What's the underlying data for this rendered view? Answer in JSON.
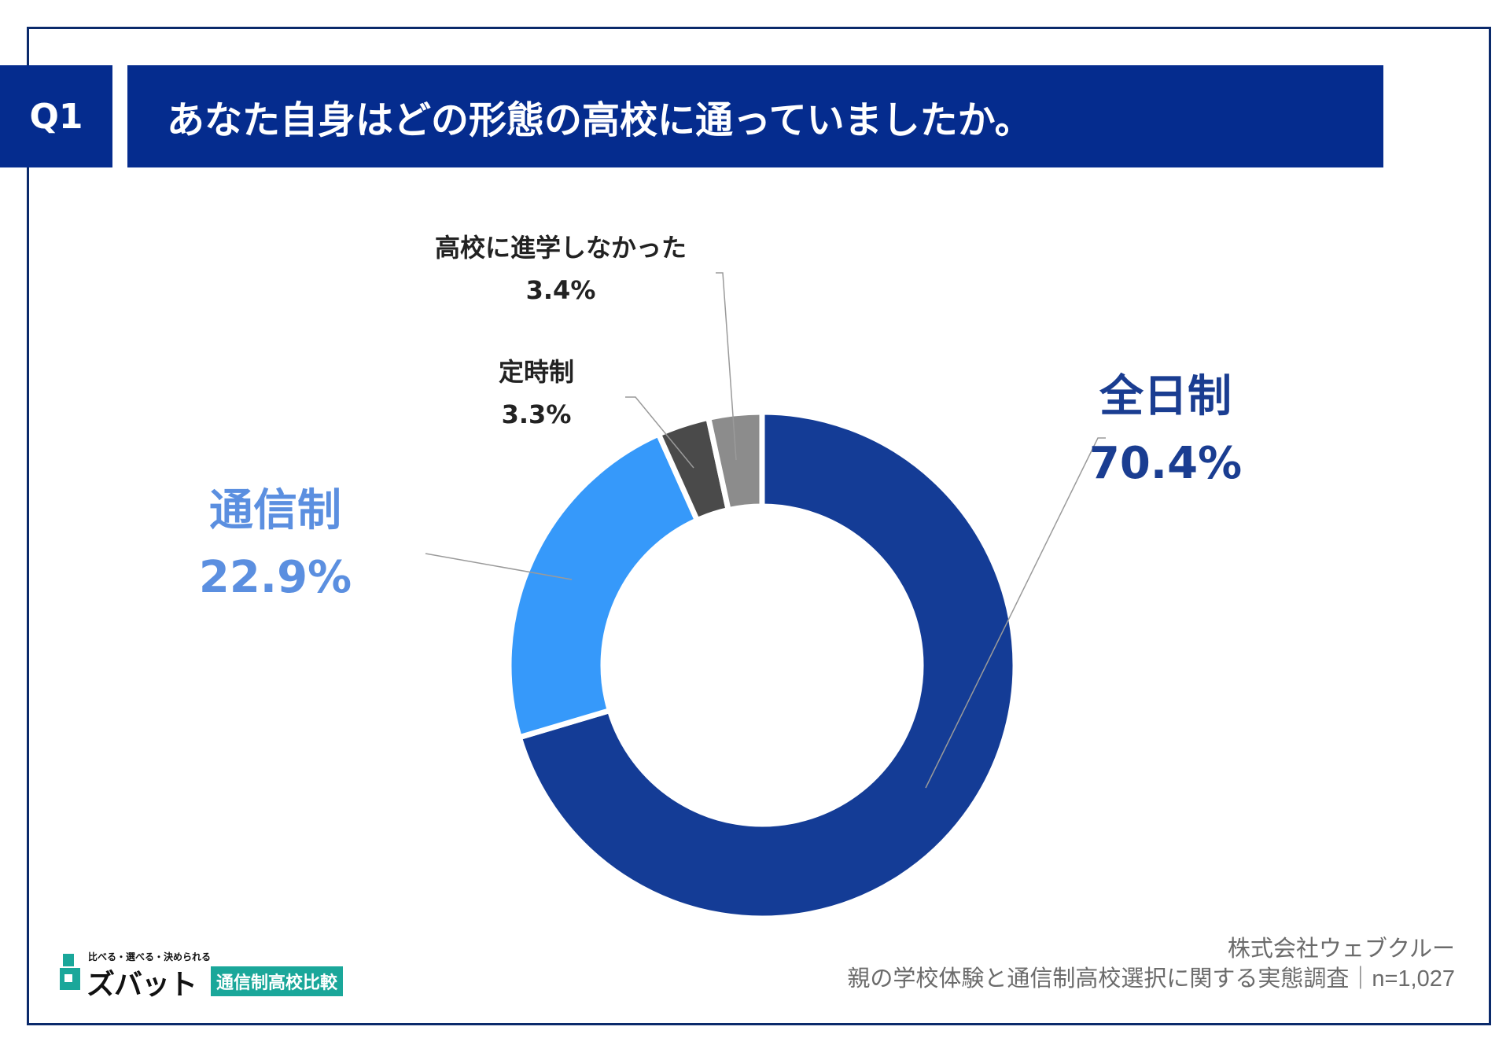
{
  "header": {
    "q_label": "Q1",
    "title": "あなた自身はどの形態の高校に通っていましたか。"
  },
  "chart_data": {
    "type": "pie",
    "donut": true,
    "title": "あなた自身はどの形態の高校に通っていましたか。",
    "categories": [
      "全日制",
      "通信制",
      "定時制",
      "高校に進学しなかった"
    ],
    "values": [
      70.4,
      22.9,
      3.3,
      3.4
    ],
    "value_labels": [
      "70.4%",
      "22.9%",
      "3.3%",
      "3.4%"
    ],
    "colors": [
      "#143c96",
      "#3699fa",
      "#4a4a4a",
      "#8c8c8c"
    ]
  },
  "labels": {
    "zennichi": {
      "name": "全日制",
      "value": "70.4%"
    },
    "tsushin": {
      "name": "通信制",
      "value": "22.9%"
    },
    "teiji": {
      "name": "定時制",
      "value": "3.3%"
    },
    "shingaku": {
      "name": "高校に進学しなかった",
      "value": "3.4%"
    }
  },
  "footer": {
    "company": "株式会社ウェブクルー",
    "survey": "親の学校体験と通信制高校選択に関する実態調査｜n=1,027"
  },
  "logo": {
    "tagline": "比べる・選べる・決められる",
    "name": "ズバット",
    "badge": "通信制高校比較"
  }
}
